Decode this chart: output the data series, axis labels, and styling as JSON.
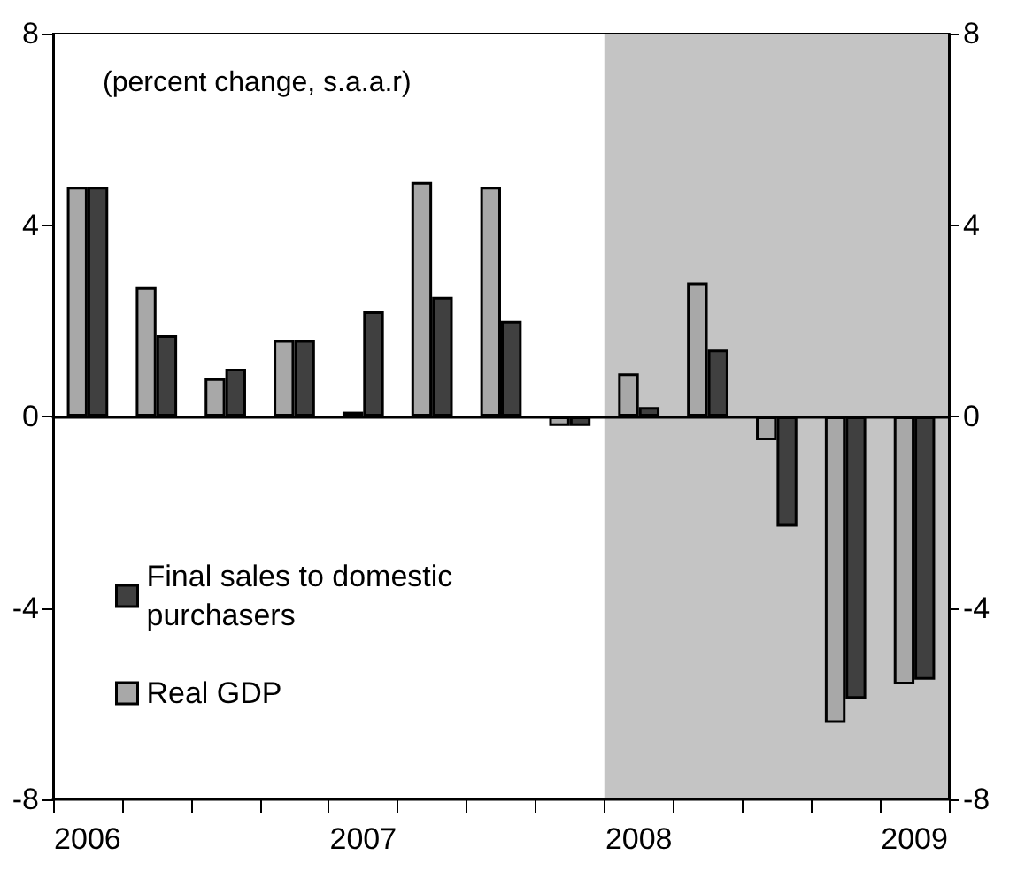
{
  "chart_data": {
    "type": "bar",
    "categories": [
      "2006",
      null,
      null,
      null,
      "2007",
      null,
      null,
      null,
      "2008",
      null,
      null,
      null,
      "2009"
    ],
    "series": [
      {
        "name": "Real GDP",
        "color": "#a8a8a8",
        "values": [
          4.8,
          2.7,
          0.8,
          1.6,
          0.1,
          4.9,
          4.8,
          -0.2,
          0.9,
          2.8,
          -0.5,
          -6.4,
          -5.6
        ]
      },
      {
        "name": "Final sales to domestic purchasers",
        "color": "#404040",
        "values": [
          4.8,
          1.7,
          1.0,
          1.6,
          2.2,
          2.5,
          2.0,
          -0.2,
          0.2,
          1.4,
          -2.3,
          -5.9,
          -5.5
        ]
      }
    ],
    "ylim": [
      -8,
      8
    ],
    "yticks": [
      -8,
      -4,
      0,
      4,
      8
    ],
    "y2lim": [
      -8,
      8
    ],
    "y2ticks": [
      -8,
      -4,
      0,
      4,
      8
    ],
    "annotations": [
      "(percent change, s.a.a.r)"
    ],
    "bands": [
      {
        "axis": "x",
        "from": "2008",
        "to": "2009",
        "color": "#c4c4c4"
      }
    ],
    "legend": "bottom left"
  }
}
